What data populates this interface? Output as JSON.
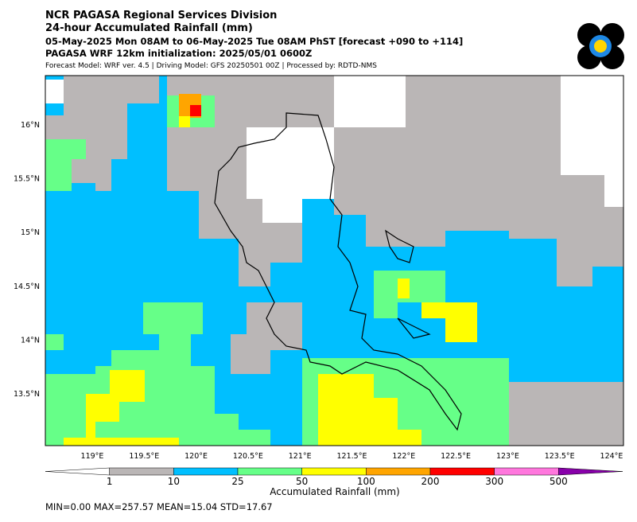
{
  "header": {
    "lines": [
      "NCR PAGASA Regional Services Division",
      "24-hour Accumulated Rainfall (mm)",
      "05-May-2025 Mon 08AM to 06-May-2025 Tue 08AM PhST [forecast +090 to +114]",
      "PAGASA WRF 12km initialization: 2025/05/01 0600Z",
      "Forecast Model: WRF ver. 4.5 | Driving Model: GFS 20250501 00Z | Processed by: RDTD-NMS"
    ]
  },
  "map": {
    "lat_labels": [
      "16°N",
      "15.5°N",
      "15°N",
      "14.5°N",
      "14°N",
      "13.5°N"
    ],
    "lon_labels": [
      "119°E",
      "119.5°E",
      "120°E",
      "120.5°E",
      "121°E",
      "121.5°E",
      "122°E",
      "122.5°E",
      "123°E",
      "123.5°E",
      "124°E"
    ]
  },
  "colorbar": {
    "ticks": [
      "1",
      "10",
      "25",
      "50",
      "100",
      "200",
      "300",
      "500"
    ],
    "colors": [
      "#ffffff",
      "#bab6b6",
      "#00bfff",
      "#66ff88",
      "#ffff00",
      "#ffa500",
      "#ff0000",
      "#ff77dd",
      "#8800aa"
    ],
    "label": "Accumulated Rainfall (mm)"
  },
  "stats": "MIN=0.00   MAX=257.57   MEAN=15.04   STD=17.67"
}
